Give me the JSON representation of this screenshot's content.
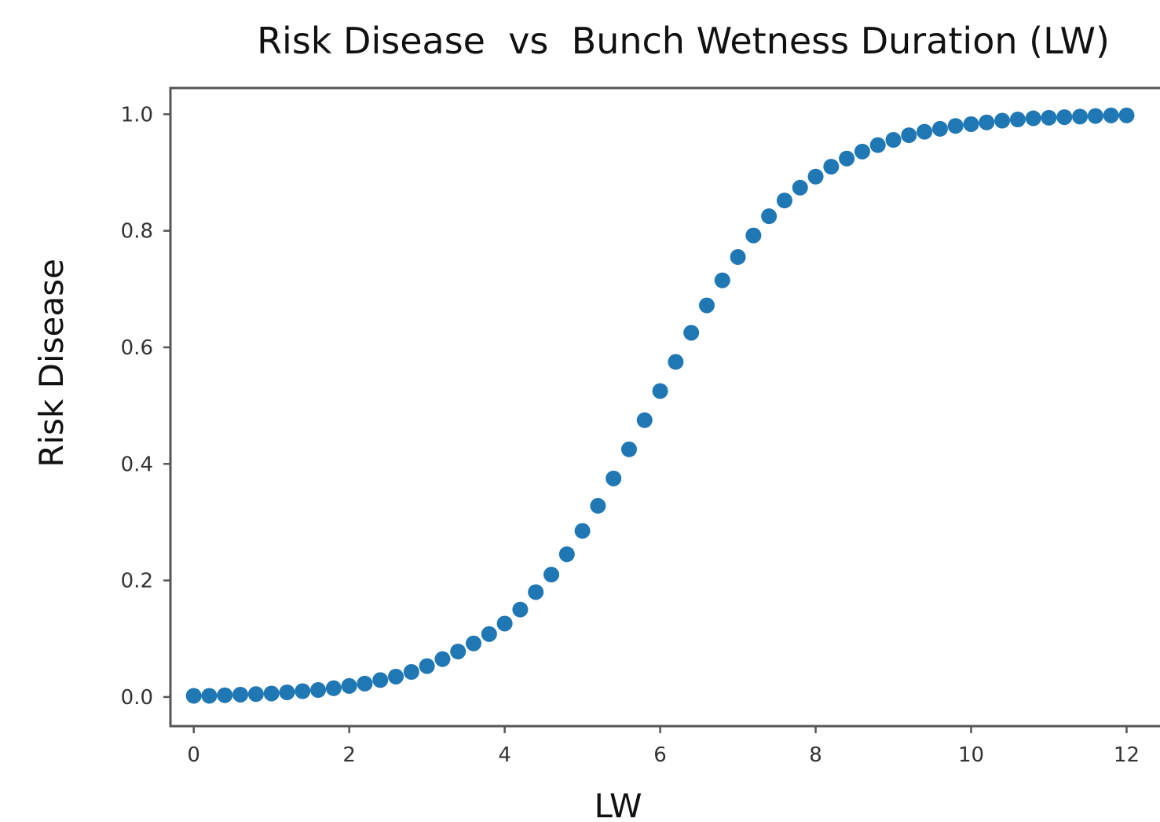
{
  "chart_data": {
    "type": "scatter",
    "title": "Risk Disease  vs  Bunch Wetness Duration (LW)",
    "xlabel": "LW",
    "ylabel": "Risk Disease",
    "xlim": [
      -0.3,
      12.45
    ],
    "ylim": [
      -0.05,
      1.045
    ],
    "xticks": [
      0,
      2,
      4,
      6,
      8,
      10,
      12
    ],
    "xtick_labels": [
      "0",
      "2",
      "4",
      "6",
      "8",
      "10",
      "12"
    ],
    "yticks": [
      0.0,
      0.2,
      0.4,
      0.6,
      0.8,
      1.0
    ],
    "ytick_labels": [
      "0.0",
      "0.2",
      "0.4",
      "0.6",
      "0.8",
      "1.0"
    ],
    "grid": false,
    "legend": "none",
    "marker_color": "#1f77b4",
    "series": [
      {
        "x": [
          0.0,
          0.2,
          0.4,
          0.6,
          0.8,
          1.0,
          1.2,
          1.4,
          1.6,
          1.8,
          2.0,
          2.2,
          2.4,
          2.6,
          2.8,
          3.0,
          3.2,
          3.4,
          3.6,
          3.8,
          4.0,
          4.2,
          4.4,
          4.6,
          4.8,
          5.0,
          5.2,
          5.4,
          5.6,
          5.8,
          6.0,
          6.2,
          6.4,
          6.6,
          6.8,
          7.0,
          7.2,
          7.4,
          7.6,
          7.8,
          8.0,
          8.2,
          8.4,
          8.6,
          8.8,
          9.0,
          9.2,
          9.4,
          9.6,
          9.8,
          10.0,
          10.2,
          10.4,
          10.6,
          10.8,
          11.0,
          11.2,
          11.4,
          11.6,
          11.8,
          12.0
        ],
        "y": [
          0.002,
          0.002,
          0.003,
          0.004,
          0.005,
          0.006,
          0.008,
          0.01,
          0.012,
          0.015,
          0.019,
          0.023,
          0.029,
          0.035,
          0.043,
          0.053,
          0.065,
          0.078,
          0.092,
          0.108,
          0.126,
          0.15,
          0.18,
          0.21,
          0.245,
          0.285,
          0.328,
          0.375,
          0.425,
          0.475,
          0.525,
          0.575,
          0.625,
          0.672,
          0.715,
          0.755,
          0.792,
          0.825,
          0.852,
          0.874,
          0.893,
          0.91,
          0.924,
          0.936,
          0.947,
          0.956,
          0.964,
          0.97,
          0.975,
          0.98,
          0.983,
          0.986,
          0.989,
          0.991,
          0.993,
          0.994,
          0.995,
          0.996,
          0.997,
          0.998,
          0.998
        ]
      }
    ]
  }
}
